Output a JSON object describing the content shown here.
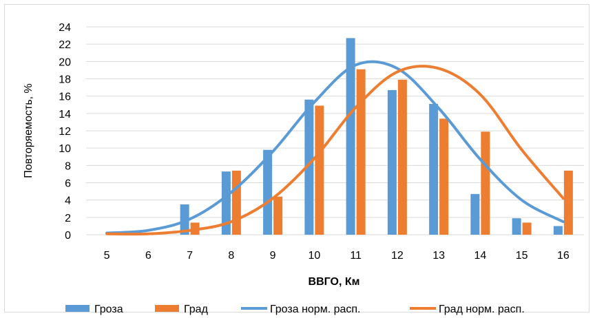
{
  "chart_data": {
    "type": "bar",
    "categories": [
      "5",
      "6",
      "7",
      "8",
      "9",
      "10",
      "11",
      "12",
      "13",
      "14",
      "15",
      "16"
    ],
    "xlabel": "ВВГО, Км",
    "ylabel": "Повторяемость, %",
    "ylim": [
      0,
      24
    ],
    "yticks": [
      "0",
      "2",
      "4",
      "6",
      "8",
      "10",
      "12",
      "14",
      "16",
      "18",
      "20",
      "22",
      "24"
    ],
    "grid": true,
    "legend": "bottom",
    "series": [
      {
        "name": "Гроза",
        "kind": "bar",
        "color": "#5b9bd5",
        "values": [
          0,
          0,
          3.5,
          7.3,
          9.8,
          15.6,
          22.7,
          16.7,
          15.1,
          4.7,
          1.9,
          1.0
        ]
      },
      {
        "name": "Град",
        "kind": "bar",
        "color": "#ed7d31",
        "values": [
          0,
          0,
          1.4,
          7.4,
          4.4,
          14.9,
          19.1,
          17.9,
          13.4,
          11.9,
          1.4,
          7.4
        ]
      },
      {
        "name": "Гроза норм. расп.",
        "kind": "line",
        "color": "#5b9bd5",
        "values": [
          0.2,
          0.5,
          1.8,
          4.9,
          9.6,
          15.3,
          19.6,
          19.2,
          14.6,
          8.7,
          4.0,
          1.5
        ]
      },
      {
        "name": "Град норм. расп.",
        "kind": "line",
        "color": "#ed7d31",
        "values": [
          0.1,
          0.1,
          0.5,
          1.5,
          4.2,
          8.8,
          14.7,
          18.8,
          19.2,
          16.2,
          9.8,
          4.2
        ]
      }
    ]
  }
}
